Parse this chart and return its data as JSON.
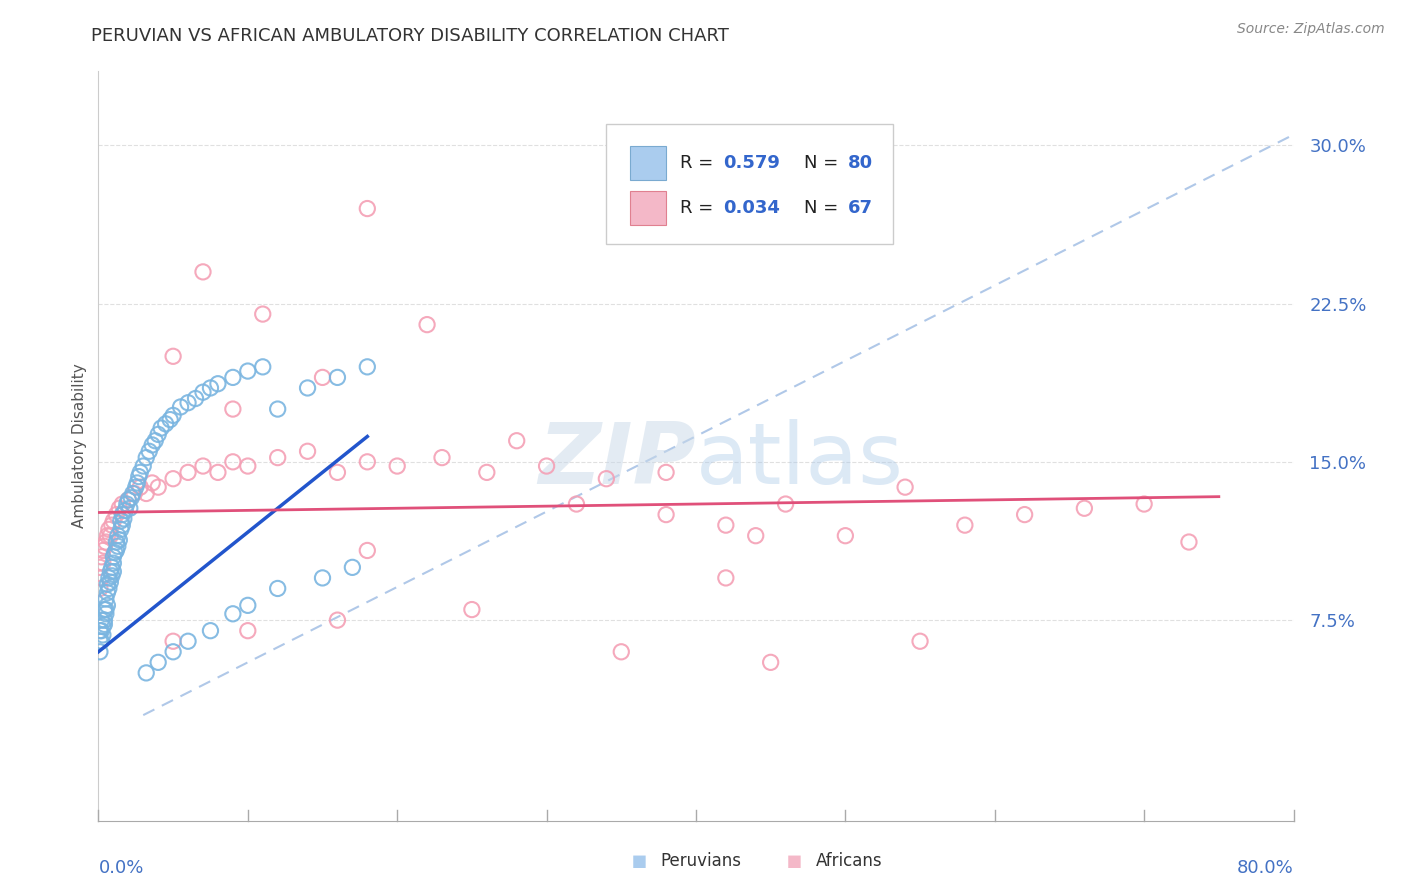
{
  "title": "PERUVIAN VS AFRICAN AMBULATORY DISABILITY CORRELATION CHART",
  "source": "Source: ZipAtlas.com",
  "ylabel": "Ambulatory Disability",
  "xlim": [
    0.0,
    0.8
  ],
  "ylim": [
    -0.02,
    0.335
  ],
  "peruvian_color": "#7ab5e0",
  "african_color": "#f4a0b5",
  "peruvian_R": 0.579,
  "peruvian_N": 80,
  "african_R": 0.034,
  "african_N": 67,
  "watermark_zip": "ZIP",
  "watermark_atlas": "atlas",
  "legend_facecolor": "#f0f8ff",
  "legend_edgecolor": "#bbbbbb",
  "ytick_vals": [
    0.075,
    0.15,
    0.225,
    0.3
  ],
  "ytick_labels": [
    "7.5%",
    "15.0%",
    "22.5%",
    "30.0%"
  ],
  "ref_line_color": "#b0c8e8",
  "peru_line_color": "#2255cc",
  "africa_line_color": "#e0507a",
  "grid_color": "#e0e0e0",
  "peru_x": [
    0.001,
    0.001,
    0.001,
    0.002,
    0.002,
    0.002,
    0.003,
    0.003,
    0.004,
    0.004,
    0.004,
    0.005,
    0.005,
    0.005,
    0.006,
    0.006,
    0.006,
    0.007,
    0.007,
    0.008,
    0.008,
    0.009,
    0.009,
    0.01,
    0.01,
    0.01,
    0.011,
    0.012,
    0.012,
    0.013,
    0.013,
    0.014,
    0.015,
    0.015,
    0.016,
    0.016,
    0.017,
    0.018,
    0.019,
    0.02,
    0.021,
    0.022,
    0.023,
    0.025,
    0.026,
    0.027,
    0.028,
    0.03,
    0.032,
    0.034,
    0.036,
    0.038,
    0.04,
    0.042,
    0.045,
    0.048,
    0.05,
    0.055,
    0.06,
    0.065,
    0.07,
    0.075,
    0.08,
    0.09,
    0.1,
    0.11,
    0.12,
    0.14,
    0.16,
    0.18,
    0.032,
    0.04,
    0.05,
    0.06,
    0.075,
    0.09,
    0.1,
    0.12,
    0.15,
    0.17
  ],
  "peru_y": [
    0.065,
    0.06,
    0.07,
    0.065,
    0.07,
    0.075,
    0.072,
    0.068,
    0.075,
    0.08,
    0.073,
    0.08,
    0.085,
    0.078,
    0.082,
    0.088,
    0.092,
    0.09,
    0.095,
    0.093,
    0.098,
    0.096,
    0.1,
    0.098,
    0.105,
    0.102,
    0.107,
    0.108,
    0.112,
    0.11,
    0.115,
    0.113,
    0.118,
    0.122,
    0.12,
    0.125,
    0.123,
    0.127,
    0.13,
    0.132,
    0.128,
    0.133,
    0.135,
    0.138,
    0.14,
    0.143,
    0.145,
    0.148,
    0.152,
    0.155,
    0.158,
    0.16,
    0.163,
    0.166,
    0.168,
    0.17,
    0.172,
    0.176,
    0.178,
    0.18,
    0.183,
    0.185,
    0.187,
    0.19,
    0.193,
    0.195,
    0.175,
    0.185,
    0.19,
    0.195,
    0.05,
    0.055,
    0.06,
    0.065,
    0.07,
    0.078,
    0.082,
    0.09,
    0.095,
    0.1
  ],
  "africa_x": [
    0.001,
    0.001,
    0.002,
    0.002,
    0.003,
    0.003,
    0.004,
    0.005,
    0.006,
    0.007,
    0.008,
    0.009,
    0.01,
    0.012,
    0.014,
    0.016,
    0.02,
    0.024,
    0.028,
    0.032,
    0.036,
    0.04,
    0.05,
    0.06,
    0.07,
    0.08,
    0.09,
    0.1,
    0.12,
    0.14,
    0.16,
    0.18,
    0.2,
    0.23,
    0.26,
    0.3,
    0.34,
    0.38,
    0.42,
    0.46,
    0.5,
    0.54,
    0.58,
    0.62,
    0.66,
    0.7,
    0.73,
    0.05,
    0.07,
    0.09,
    0.11,
    0.15,
    0.18,
    0.22,
    0.28,
    0.32,
    0.38,
    0.44,
    0.05,
    0.1,
    0.16,
    0.25,
    0.35,
    0.45,
    0.55,
    0.18,
    0.42
  ],
  "africa_y": [
    0.1,
    0.09,
    0.105,
    0.095,
    0.108,
    0.102,
    0.11,
    0.112,
    0.115,
    0.118,
    0.115,
    0.12,
    0.122,
    0.125,
    0.128,
    0.13,
    0.132,
    0.135,
    0.138,
    0.135,
    0.14,
    0.138,
    0.142,
    0.145,
    0.148,
    0.145,
    0.15,
    0.148,
    0.152,
    0.155,
    0.145,
    0.15,
    0.148,
    0.152,
    0.145,
    0.148,
    0.142,
    0.145,
    0.12,
    0.13,
    0.115,
    0.138,
    0.12,
    0.125,
    0.128,
    0.13,
    0.112,
    0.2,
    0.24,
    0.175,
    0.22,
    0.19,
    0.27,
    0.215,
    0.16,
    0.13,
    0.125,
    0.115,
    0.065,
    0.07,
    0.075,
    0.08,
    0.06,
    0.055,
    0.065,
    0.108,
    0.095
  ]
}
